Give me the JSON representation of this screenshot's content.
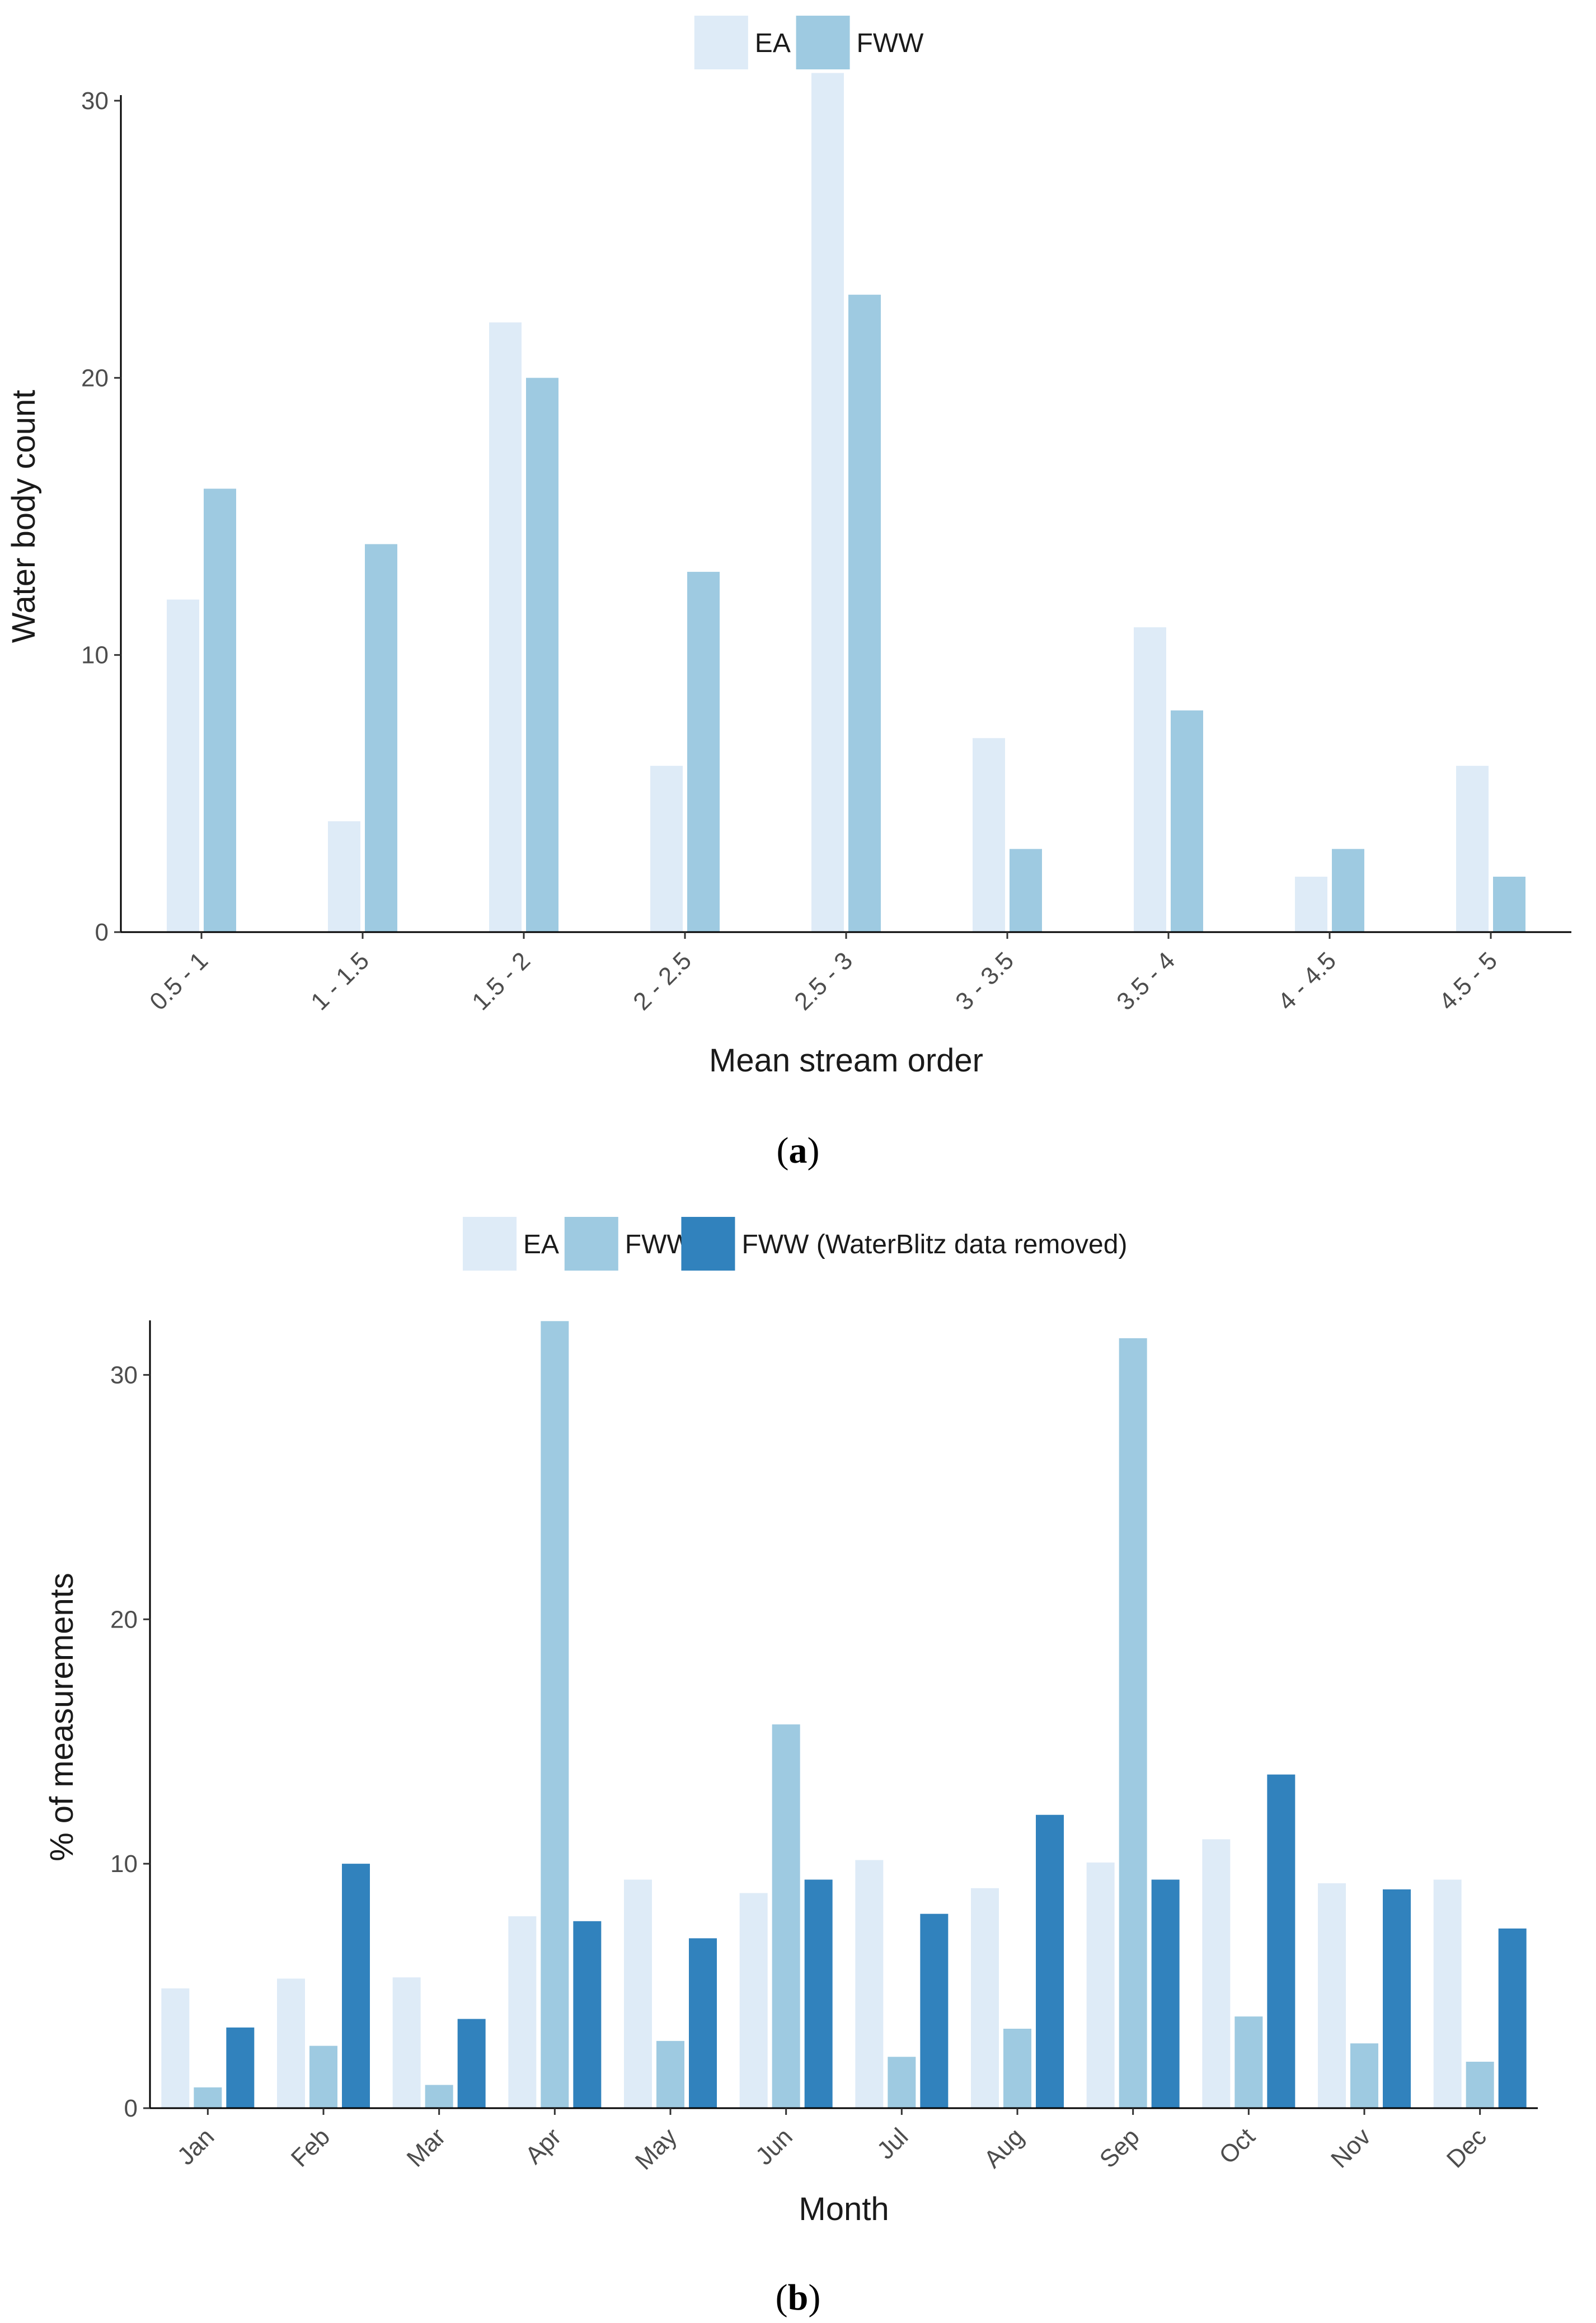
{
  "chart_data": [
    {
      "type": "bar",
      "title": "",
      "panel_label": "a",
      "xlabel": "Mean stream order",
      "ylabel": "Water body count",
      "ylim": [
        0,
        30
      ],
      "yticks": [
        0,
        10,
        20,
        30
      ],
      "grid": false,
      "legend_position": "top-center",
      "categories": [
        "0.5 - 1",
        "1 - 1.5",
        "1.5 - 2",
        "2 - 2.5",
        "2.5 - 3",
        "3 - 3.5",
        "3.5 - 4",
        "4 - 4.5",
        "4.5 - 5"
      ],
      "series": [
        {
          "name": "EA",
          "color": "#deebf7",
          "values": [
            12,
            4,
            22,
            6,
            31,
            7,
            11,
            2,
            6
          ]
        },
        {
          "name": "FWW",
          "color": "#9ecae1",
          "values": [
            16,
            14,
            20,
            13,
            23,
            3,
            8,
            3,
            2
          ]
        }
      ]
    },
    {
      "type": "bar",
      "title": "",
      "panel_label": "b",
      "xlabel": "Month",
      "ylabel": "% of measurements",
      "ylim": [
        0,
        32
      ],
      "yticks": [
        0,
        10,
        20,
        30
      ],
      "grid": false,
      "legend_position": "top-center",
      "categories": [
        "Jan",
        "Feb",
        "Mar",
        "Apr",
        "May",
        "Jun",
        "Jul",
        "Aug",
        "Sep",
        "Oct",
        "Nov",
        "Dec"
      ],
      "series": [
        {
          "name": "EA",
          "color": "#deebf7",
          "values": [
            4.9,
            5.3,
            5.35,
            7.85,
            9.35,
            8.8,
            10.15,
            9.0,
            10.05,
            11.0,
            9.2,
            9.35
          ]
        },
        {
          "name": "FWW",
          "color": "#9ecae1",
          "values": [
            0.85,
            2.55,
            0.95,
            32.2,
            2.75,
            15.7,
            2.1,
            3.25,
            31.5,
            3.75,
            2.65,
            1.9
          ]
        },
        {
          "name": "FWW (WaterBlitz data removed)",
          "color": "#3182bd",
          "values": [
            3.3,
            10.0,
            3.65,
            7.65,
            6.95,
            9.35,
            7.95,
            12.0,
            9.35,
            13.65,
            8.95,
            7.35
          ]
        }
      ]
    }
  ],
  "captions": {
    "a": "a",
    "b": "b"
  }
}
